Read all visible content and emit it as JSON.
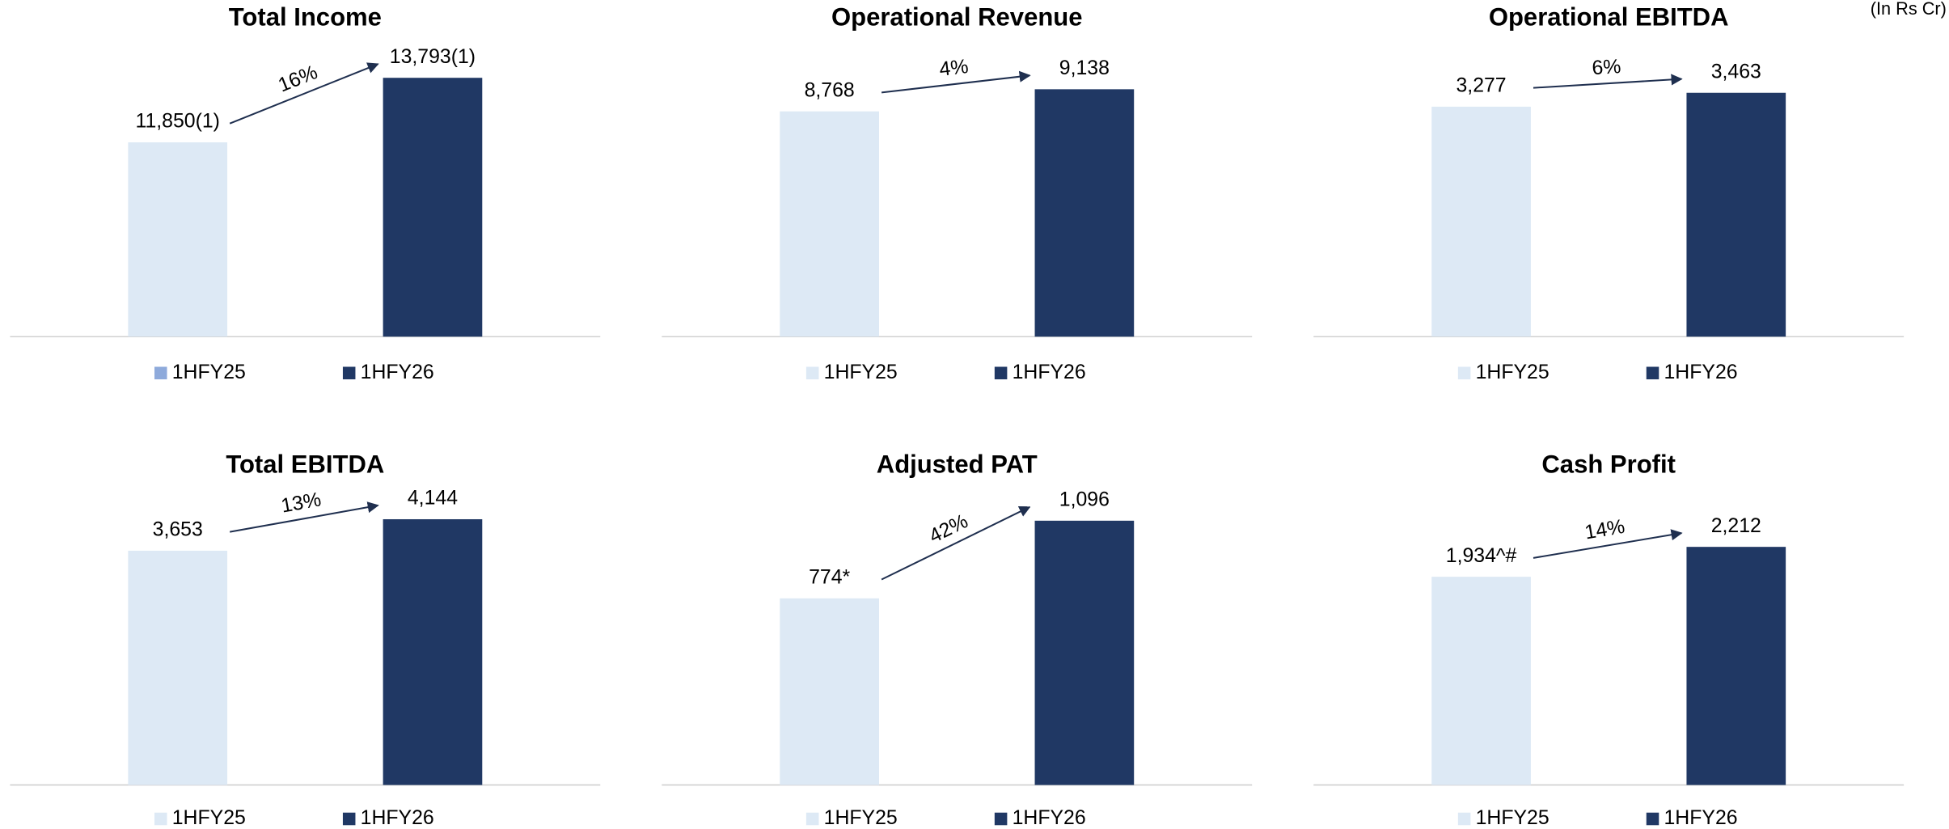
{
  "unit_note": "(In Rs Cr)",
  "chart_data": [
    {
      "type": "bar",
      "title": "Total Income",
      "categories": [
        "1HFY25",
        "1HFY26"
      ],
      "values": [
        11850,
        13793
      ],
      "value_labels": [
        "11,850(1)",
        "13,793(1)"
      ],
      "annotation": "16%",
      "colors": [
        "#dde9f5",
        "#203864"
      ],
      "legend_colors": [
        "#8eaadb",
        "#203864"
      ],
      "ylim": [
        6000,
        15000
      ]
    },
    {
      "type": "bar",
      "title": "Operational Revenue",
      "categories": [
        "1HFY25",
        "1HFY26"
      ],
      "values": [
        8768,
        9138
      ],
      "value_labels": [
        "8,768",
        "9,138"
      ],
      "annotation": "4%",
      "colors": [
        "#dde9f5",
        "#203864"
      ],
      "ylim": [
        5000,
        10000
      ]
    },
    {
      "type": "bar",
      "title": "Operational EBITDA",
      "categories": [
        "1HFY25",
        "1HFY26"
      ],
      "values": [
        3277,
        3463
      ],
      "value_labels": [
        "3,277",
        "3,463"
      ],
      "annotation": "6%",
      "colors": [
        "#dde9f5",
        "#203864"
      ],
      "ylim": [
        200,
        4200
      ]
    },
    {
      "type": "bar",
      "title": "Total EBITDA",
      "categories": [
        "1HFY25",
        "1HFY26"
      ],
      "values": [
        3653,
        4144
      ],
      "value_labels": [
        "3,653",
        "4,144"
      ],
      "annotation": "13%",
      "colors": [
        "#dde9f5",
        "#203864"
      ],
      "ylim": [
        0,
        4700
      ]
    },
    {
      "type": "bar",
      "title": "Adjusted PAT",
      "categories": [
        "1HFY25",
        "1HFY26"
      ],
      "values": [
        774,
        1096
      ],
      "value_labels": [
        "774*",
        "1,096"
      ],
      "annotation": "42%",
      "colors": [
        "#dde9f5",
        "#203864"
      ],
      "ylim": [
        0,
        1250
      ]
    },
    {
      "type": "bar",
      "title": "Cash Profit",
      "categories": [
        "1HFY25",
        "1HFY26"
      ],
      "values": [
        1934,
        2212
      ],
      "value_labels": [
        "1,934^#",
        "2,212"
      ],
      "annotation": "14%",
      "colors": [
        "#dde9f5",
        "#203864"
      ],
      "ylim": [
        0,
        2800
      ]
    }
  ]
}
